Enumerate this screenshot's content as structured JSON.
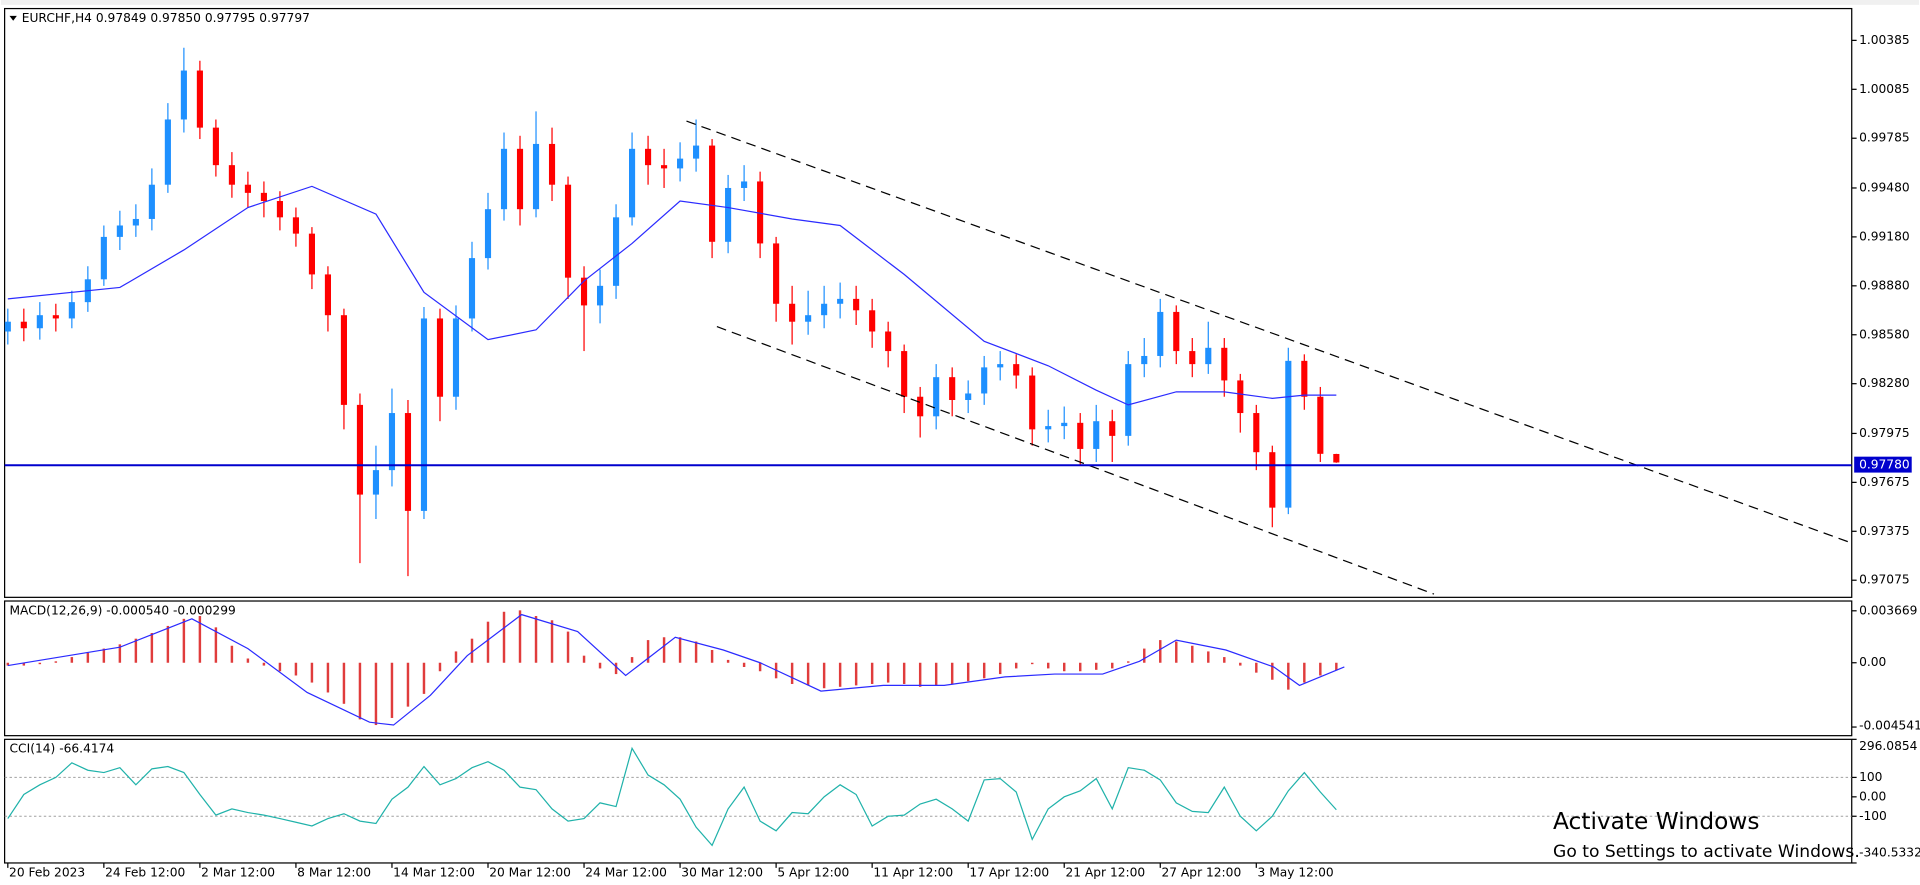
{
  "chart_data": [
    {
      "type": "candlestick",
      "title": "EURCHF,H4 0.97849 0.97850 0.97795 0.97797",
      "up_color": "#1e90ff",
      "down_color": "#ff0000",
      "grid": false,
      "xlim": [
        -0.2,
        115.2
      ],
      "xticks": [
        {
          "value": 0,
          "label": "20 Feb 2023"
        },
        {
          "value": 6,
          "label": "24 Feb 12:00"
        },
        {
          "value": 12,
          "label": "2 Mar 12:00"
        },
        {
          "value": 18,
          "label": "8 Mar 12:00"
        },
        {
          "value": 24,
          "label": "14 Mar 12:00"
        },
        {
          "value": 30,
          "label": "20 Mar 12:00"
        },
        {
          "value": 36,
          "label": "24 Mar 12:00"
        },
        {
          "value": 42,
          "label": "30 Mar 12:00"
        },
        {
          "value": 48,
          "label": "5 Apr 12:00"
        },
        {
          "value": 54,
          "label": "11 Apr 12:00"
        },
        {
          "value": 60,
          "label": "17 Apr 12:00"
        },
        {
          "value": 66,
          "label": "21 Apr 12:00"
        },
        {
          "value": 72,
          "label": "27 Apr 12:00"
        },
        {
          "value": 78,
          "label": "3 May 12:00"
        }
      ],
      "ylim": [
        0.9697,
        1.0058
      ],
      "yticks": [
        1.00385,
        1.00085,
        0.99785,
        {
          "value": 0.9948,
          "label": "0.99480"
        },
        {
          "value": 0.9918,
          "label": "0.99180"
        },
        {
          "value": 0.9888,
          "label": "0.98880"
        },
        {
          "value": 0.9858,
          "label": "0.98580"
        },
        {
          "value": 0.9828,
          "label": "0.98280"
        },
        0.97975,
        0.97675,
        0.97375,
        0.97075
      ],
      "price_line": {
        "value": 0.9778,
        "label": "0.97780",
        "color": "#0000cd"
      },
      "ohlc": [
        [
          0.986,
          0.9874,
          0.9852,
          0.9866
        ],
        [
          0.9866,
          0.9874,
          0.9854,
          0.9862
        ],
        [
          0.9862,
          0.9878,
          0.9855,
          0.987
        ],
        [
          0.987,
          0.9877,
          0.986,
          0.9868
        ],
        [
          0.9868,
          0.9885,
          0.9862,
          0.9878
        ],
        [
          0.9878,
          0.99,
          0.9872,
          0.9892
        ],
        [
          0.9892,
          0.9925,
          0.9888,
          0.9918
        ],
        [
          0.9918,
          0.9934,
          0.991,
          0.9925
        ],
        [
          0.9925,
          0.9938,
          0.9918,
          0.9929
        ],
        [
          0.9929,
          0.996,
          0.9922,
          0.995
        ],
        [
          0.995,
          1.0,
          0.9945,
          0.999
        ],
        [
          0.999,
          1.0034,
          0.9982,
          1.002
        ],
        [
          1.002,
          1.0026,
          0.9978,
          0.9985
        ],
        [
          0.9985,
          0.999,
          0.9955,
          0.9962
        ],
        [
          0.9962,
          0.997,
          0.9942,
          0.995
        ],
        [
          0.995,
          0.9958,
          0.9936,
          0.9945
        ],
        [
          0.9945,
          0.9952,
          0.993,
          0.994
        ],
        [
          0.994,
          0.9946,
          0.9922,
          0.993
        ],
        [
          0.993,
          0.9936,
          0.9912,
          0.992
        ],
        [
          0.992,
          0.9924,
          0.9886,
          0.9895
        ],
        [
          0.9895,
          0.99,
          0.986,
          0.987
        ],
        [
          0.987,
          0.9874,
          0.98,
          0.9815
        ],
        [
          0.9815,
          0.9822,
          0.9718,
          0.976
        ],
        [
          0.976,
          0.979,
          0.9745,
          0.9775
        ],
        [
          0.9775,
          0.9825,
          0.9765,
          0.981
        ],
        [
          0.981,
          0.9818,
          0.971,
          0.975
        ],
        [
          0.975,
          0.9875,
          0.9745,
          0.9868
        ],
        [
          0.9868,
          0.9874,
          0.9805,
          0.982
        ],
        [
          0.982,
          0.9876,
          0.9812,
          0.9868
        ],
        [
          0.9868,
          0.9915,
          0.986,
          0.9905
        ],
        [
          0.9905,
          0.9945,
          0.9898,
          0.9935
        ],
        [
          0.9935,
          0.9982,
          0.9928,
          0.9972
        ],
        [
          0.9972,
          0.998,
          0.9925,
          0.9935
        ],
        [
          0.9935,
          0.9995,
          0.993,
          0.9975
        ],
        [
          0.9975,
          0.9985,
          0.994,
          0.995
        ],
        [
          0.995,
          0.9955,
          0.988,
          0.9893
        ],
        [
          0.9893,
          0.99,
          0.9848,
          0.9876
        ],
        [
          0.9876,
          0.9898,
          0.9865,
          0.9888
        ],
        [
          0.9888,
          0.9938,
          0.988,
          0.993
        ],
        [
          0.993,
          0.9982,
          0.9925,
          0.9972
        ],
        [
          0.9972,
          0.998,
          0.995,
          0.9962
        ],
        [
          0.9962,
          0.9972,
          0.9948,
          0.996
        ],
        [
          0.996,
          0.9976,
          0.9952,
          0.9966
        ],
        [
          0.9966,
          0.999,
          0.9958,
          0.9974
        ],
        [
          0.9974,
          0.9978,
          0.9905,
          0.9915
        ],
        [
          0.9915,
          0.9956,
          0.9908,
          0.9948
        ],
        [
          0.9948,
          0.9962,
          0.994,
          0.9952
        ],
        [
          0.9952,
          0.9958,
          0.9905,
          0.9914
        ],
        [
          0.9914,
          0.9918,
          0.9866,
          0.9877
        ],
        [
          0.9877,
          0.9888,
          0.9852,
          0.9866
        ],
        [
          0.9866,
          0.9885,
          0.9858,
          0.987
        ],
        [
          0.987,
          0.9888,
          0.9862,
          0.9877
        ],
        [
          0.9877,
          0.989,
          0.9868,
          0.988
        ],
        [
          0.988,
          0.9888,
          0.9864,
          0.9873
        ],
        [
          0.9873,
          0.988,
          0.985,
          0.986
        ],
        [
          0.986,
          0.9866,
          0.9838,
          0.9848
        ],
        [
          0.9848,
          0.9852,
          0.981,
          0.982
        ],
        [
          0.982,
          0.9826,
          0.9795,
          0.9808
        ],
        [
          0.9808,
          0.984,
          0.98,
          0.9832
        ],
        [
          0.9832,
          0.9838,
          0.9808,
          0.9818
        ],
        [
          0.9818,
          0.983,
          0.981,
          0.9822
        ],
        [
          0.9822,
          0.9845,
          0.9815,
          0.9838
        ],
        [
          0.9838,
          0.9848,
          0.983,
          0.984
        ],
        [
          0.984,
          0.9846,
          0.9825,
          0.9833
        ],
        [
          0.9833,
          0.9838,
          0.979,
          0.98
        ],
        [
          0.98,
          0.9812,
          0.9792,
          0.9802
        ],
        [
          0.9802,
          0.9814,
          0.9794,
          0.9804
        ],
        [
          0.9804,
          0.981,
          0.9778,
          0.9788
        ],
        [
          0.9788,
          0.9815,
          0.978,
          0.9805
        ],
        [
          0.9805,
          0.9812,
          0.978,
          0.9796
        ],
        [
          0.9796,
          0.9848,
          0.979,
          0.984
        ],
        [
          0.984,
          0.9856,
          0.9832,
          0.9845
        ],
        [
          0.9845,
          0.988,
          0.9838,
          0.9872
        ],
        [
          0.9872,
          0.9876,
          0.984,
          0.9848
        ],
        [
          0.9848,
          0.9856,
          0.9832,
          0.984
        ],
        [
          0.984,
          0.9866,
          0.9834,
          0.985
        ],
        [
          0.985,
          0.9856,
          0.982,
          0.983
        ],
        [
          0.983,
          0.9834,
          0.9798,
          0.981
        ],
        [
          0.981,
          0.9815,
          0.9775,
          0.9786
        ],
        [
          0.9786,
          0.979,
          0.974,
          0.9752
        ],
        [
          0.9752,
          0.985,
          0.9748,
          0.9842
        ],
        [
          0.9842,
          0.9846,
          0.9812,
          0.982
        ],
        [
          0.982,
          0.9826,
          0.978,
          0.9785
        ],
        [
          0.97849,
          0.9785,
          0.97795,
          0.97797
        ]
      ],
      "lines": [
        {
          "color": "#2b2bff",
          "x": [
            0,
            7,
            11,
            15,
            19,
            23,
            26,
            30,
            33,
            36,
            39,
            42,
            45,
            49,
            52,
            56,
            61,
            65,
            68,
            70,
            73,
            76,
            79,
            81,
            83
          ],
          "values": [
            0.988,
            0.9887,
            0.991,
            0.9936,
            0.9949,
            0.9932,
            0.9884,
            0.9855,
            0.9861,
            0.9891,
            0.9914,
            0.994,
            0.9936,
            0.9929,
            0.9925,
            0.9895,
            0.9854,
            0.9839,
            0.9824,
            0.9815,
            0.9823,
            0.9823,
            0.9819,
            0.9821,
            0.9821
          ]
        }
      ],
      "trendlines": [
        {
          "color": "#000000",
          "points": [
            [
              42.4,
              0.9989
            ],
            [
              115,
              0.9731
            ]
          ]
        },
        {
          "color": "#000000",
          "points": [
            [
              44.3,
              0.9863
            ],
            [
              89.1,
              0.9699
            ]
          ]
        }
      ]
    },
    {
      "type": "macd",
      "title": "MACD(12,26,9) -0.000540 -0.000299",
      "color": "#e03c3c",
      "ylim": [
        -0.00515,
        0.00436
      ],
      "yticks": [
        0.003669,
        {
          "value": 0,
          "label": "0.00"
        },
        -0.004541
      ],
      "values": [
        -0.0002,
        -0.0002,
        -0.0001,
        0.0001,
        0.0004,
        0.0007,
        0.001,
        0.0013,
        0.0017,
        0.0021,
        0.0026,
        0.0031,
        0.0033,
        0.0025,
        0.0012,
        0.0003,
        -0.0002,
        -0.0006,
        -0.0009,
        -0.0014,
        -0.0021,
        -0.0029,
        -0.004,
        -0.0044,
        -0.0039,
        -0.0031,
        -0.0022,
        -0.0006,
        0.0008,
        0.0017,
        0.0029,
        0.0036,
        0.0037,
        0.0033,
        0.003,
        0.0022,
        0.0005,
        -0.0004,
        -0.0008,
        0.0004,
        0.0016,
        0.0018,
        0.0018,
        0.0015,
        0.0009,
        0.0002,
        -0.0003,
        -0.0006,
        -0.0011,
        -0.0015,
        -0.0016,
        -0.0018,
        -0.0017,
        -0.0016,
        -0.0015,
        -0.0014,
        -0.0015,
        -0.0017,
        -0.0016,
        -0.0015,
        -0.0013,
        -0.0011,
        -0.0008,
        -0.0004,
        -0.0001,
        -0.0004,
        -0.0006,
        -0.0006,
        -0.0005,
        -0.0004,
        0.0001,
        0.001,
        0.0016,
        0.0015,
        0.0012,
        0.0008,
        0.0004,
        -0.0002,
        -0.0007,
        -0.0012,
        -0.0019,
        -0.0014,
        -0.0009,
        -0.00054
      ],
      "signal": {
        "color": "#2b2bff",
        "x": [
          0,
          7,
          11.5,
          15,
          18.7,
          22.6,
          24.1,
          26.4,
          28.7,
          32.1,
          35.6,
          38.6,
          41.7,
          44.7,
          47,
          50.8,
          54.7,
          58.5,
          62.3,
          65.4,
          68.4,
          70.7,
          73,
          76.1,
          79.1,
          80.7,
          83.5
        ],
        "values": [
          -0.0002,
          0.0011,
          0.0031,
          0.001,
          -0.0021,
          -0.0042,
          -0.0044,
          -0.0023,
          0.0005,
          0.0034,
          0.0022,
          -0.0009,
          0.0018,
          0.0009,
          0,
          -0.002,
          -0.0016,
          -0.0016,
          -0.001,
          -0.0008,
          -0.0008,
          0.0001,
          0.0016,
          0.0009,
          -0.0003,
          -0.0016,
          -0.0003
        ]
      }
    },
    {
      "type": "line",
      "title": "CCI(14) -66.4174",
      "color": "#20b2aa",
      "ylim": [
        -340.5332,
        296.0854
      ],
      "yticks": [
        296.0854,
        100,
        {
          "value": 0,
          "label": "0.00"
        },
        -100,
        -340.5332
      ],
      "levels": [
        100,
        -100
      ],
      "values": [
        -112,
        12,
        62,
        100,
        175,
        137,
        125,
        150,
        62,
        144,
        156,
        125,
        12,
        -94,
        -62,
        -81,
        -94,
        -112,
        -131,
        -150,
        -112,
        -87,
        -125,
        -137,
        -12,
        50,
        156,
        62,
        94,
        150,
        181,
        137,
        50,
        37,
        -62,
        -125,
        -112,
        -31,
        -50,
        250,
        112,
        62,
        -12,
        -156,
        -250,
        -62,
        50,
        -125,
        -175,
        -81,
        -87,
        0,
        62,
        12,
        -150,
        -100,
        -94,
        -37,
        -12,
        -62,
        -125,
        87,
        94,
        25,
        -219,
        -62,
        0,
        31,
        94,
        -62,
        150,
        137,
        87,
        -31,
        -75,
        -81,
        50,
        -100,
        -175,
        -100,
        31,
        125,
        25,
        -66.4174
      ]
    }
  ],
  "watermark": {
    "title": "Activate Windows",
    "subtitle": "Go to Settings to activate Windows."
  }
}
